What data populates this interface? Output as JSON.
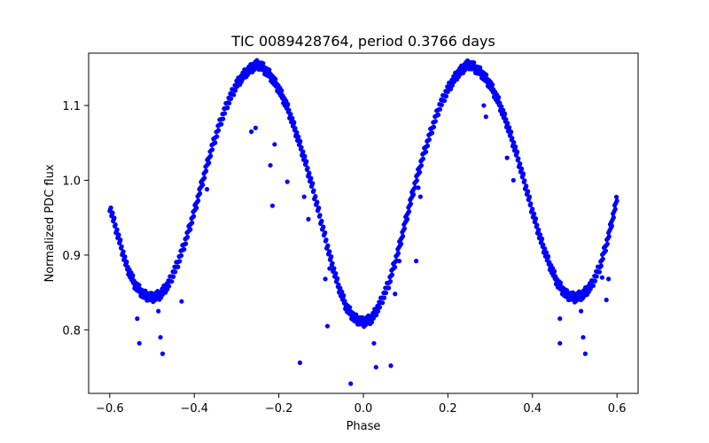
{
  "chart_data": {
    "type": "scatter",
    "title": "TIC 0089428764, period 0.3766 days",
    "xlabel": "Phase",
    "ylabel": "Normalized PDC flux",
    "xlim": [
      -0.65,
      0.65
    ],
    "ylim": [
      0.715,
      1.17
    ],
    "xticks": [
      -0.6,
      -0.4,
      -0.2,
      0.0,
      0.2,
      0.4,
      0.6
    ],
    "xtick_labels": [
      "−0.6",
      "−0.4",
      "−0.2",
      "0.0",
      "0.2",
      "0.4",
      "0.6"
    ],
    "yticks": [
      0.8,
      0.9,
      1.0,
      1.1
    ],
    "ytick_labels": [
      "0.8",
      "0.9",
      "1.0",
      "1.1"
    ],
    "grid": false,
    "marker_color": "#0000ff",
    "main_curve": {
      "description": "folded light curve, densely sampled; min near phase 0 and ±0.5, max near ±0.25",
      "x": [
        -0.6,
        -0.58,
        -0.56,
        -0.54,
        -0.52,
        -0.5,
        -0.48,
        -0.46,
        -0.44,
        -0.42,
        -0.4,
        -0.38,
        -0.36,
        -0.34,
        -0.32,
        -0.3,
        -0.28,
        -0.26,
        -0.25,
        -0.24,
        -0.22,
        -0.2,
        -0.18,
        -0.16,
        -0.14,
        -0.12,
        -0.1,
        -0.08,
        -0.06,
        -0.04,
        -0.02,
        0.0,
        0.02,
        0.04,
        0.06,
        0.08,
        0.1,
        0.12,
        0.14,
        0.16,
        0.18,
        0.2,
        0.22,
        0.24,
        0.25,
        0.26,
        0.28,
        0.3,
        0.32,
        0.34,
        0.36,
        0.38,
        0.4,
        0.42,
        0.44,
        0.46,
        0.48,
        0.5,
        0.52,
        0.54,
        0.56,
        0.58,
        0.6
      ],
      "y": [
        0.965,
        0.925,
        0.885,
        0.86,
        0.847,
        0.843,
        0.847,
        0.862,
        0.888,
        0.92,
        0.958,
        1.0,
        1.04,
        1.075,
        1.105,
        1.128,
        1.143,
        1.152,
        1.155,
        1.152,
        1.14,
        1.122,
        1.098,
        1.065,
        1.03,
        0.99,
        0.945,
        0.9,
        0.86,
        0.83,
        0.815,
        0.81,
        0.815,
        0.835,
        0.862,
        0.9,
        0.945,
        0.99,
        1.03,
        1.065,
        1.098,
        1.122,
        1.14,
        1.152,
        1.155,
        1.152,
        1.143,
        1.128,
        1.105,
        1.075,
        1.04,
        1.0,
        0.958,
        0.92,
        0.888,
        0.862,
        0.847,
        0.843,
        0.847,
        0.86,
        0.885,
        0.925,
        0.975
      ]
    },
    "outliers": [
      {
        "x": -0.535,
        "y": 0.815
      },
      {
        "x": -0.53,
        "y": 0.782
      },
      {
        "x": -0.48,
        "y": 0.79
      },
      {
        "x": -0.475,
        "y": 0.768
      },
      {
        "x": -0.485,
        "y": 0.825
      },
      {
        "x": -0.43,
        "y": 0.838
      },
      {
        "x": -0.37,
        "y": 0.988
      },
      {
        "x": -0.265,
        "y": 1.065
      },
      {
        "x": -0.255,
        "y": 1.07
      },
      {
        "x": -0.21,
        "y": 1.048
      },
      {
        "x": -0.22,
        "y": 1.02
      },
      {
        "x": -0.215,
        "y": 0.966
      },
      {
        "x": -0.18,
        "y": 0.998
      },
      {
        "x": -0.14,
        "y": 0.978
      },
      {
        "x": -0.13,
        "y": 0.948
      },
      {
        "x": -0.08,
        "y": 0.882
      },
      {
        "x": -0.09,
        "y": 0.868
      },
      {
        "x": -0.085,
        "y": 0.805
      },
      {
        "x": -0.15,
        "y": 0.756
      },
      {
        "x": -0.03,
        "y": 0.728
      },
      {
        "x": 0.03,
        "y": 0.75
      },
      {
        "x": 0.065,
        "y": 0.752
      },
      {
        "x": 0.025,
        "y": 0.782
      },
      {
        "x": 0.075,
        "y": 0.848
      },
      {
        "x": 0.085,
        "y": 0.892
      },
      {
        "x": 0.125,
        "y": 0.892
      },
      {
        "x": 0.135,
        "y": 0.978
      },
      {
        "x": 0.13,
        "y": 0.99
      },
      {
        "x": 0.285,
        "y": 1.1
      },
      {
        "x": 0.29,
        "y": 1.085
      },
      {
        "x": 0.34,
        "y": 1.03
      },
      {
        "x": 0.355,
        "y": 1.0
      },
      {
        "x": 0.465,
        "y": 0.782
      },
      {
        "x": 0.465,
        "y": 0.815
      },
      {
        "x": 0.52,
        "y": 0.79
      },
      {
        "x": 0.525,
        "y": 0.768
      },
      {
        "x": 0.515,
        "y": 0.825
      },
      {
        "x": 0.575,
        "y": 0.84
      },
      {
        "x": 0.58,
        "y": 0.868
      },
      {
        "x": 0.565,
        "y": 0.87
      }
    ]
  }
}
